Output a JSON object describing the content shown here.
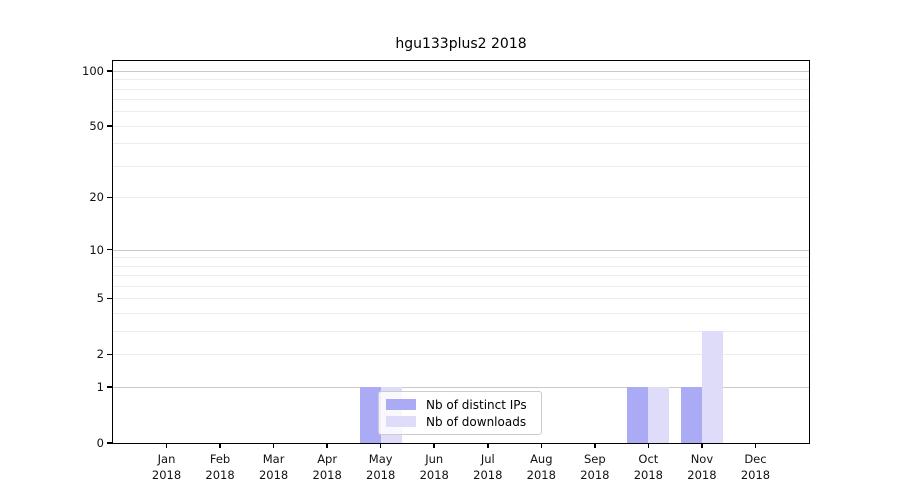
{
  "title": "hgu133plus2 2018",
  "chart_data": {
    "type": "bar",
    "title": "hgu133plus2 2018",
    "x": [
      "Jan",
      "Feb",
      "Mar",
      "Apr",
      "May",
      "Jun",
      "Jul",
      "Aug",
      "Sep",
      "Oct",
      "Nov",
      "Dec"
    ],
    "x_year": "2018",
    "series": [
      {
        "name": "Nb of distinct IPs",
        "color": "#abaaf5",
        "values": [
          0,
          0,
          0,
          0,
          1,
          0,
          0,
          0,
          0,
          1,
          1,
          0
        ]
      },
      {
        "name": "Nb of downloads",
        "color": "#dedcf8",
        "values": [
          0,
          0,
          0,
          0,
          1,
          0,
          0,
          0,
          0,
          1,
          3,
          0
        ]
      }
    ],
    "yscale": "log1p",
    "ylim": [
      0,
      113
    ],
    "y_ticks": [
      0,
      1,
      2,
      5,
      10,
      20,
      50,
      100
    ],
    "grid_major": [
      1,
      10,
      100
    ],
    "grid_minor": [
      2,
      3,
      4,
      5,
      6,
      7,
      8,
      9,
      20,
      30,
      40,
      50,
      60,
      70,
      80,
      90
    ],
    "legend_position": "lower center inside plot",
    "colors": {
      "grid_major": "#c9c9c9",
      "grid_minor": "#ececec",
      "axis": "#000000",
      "text": "#111111"
    }
  }
}
